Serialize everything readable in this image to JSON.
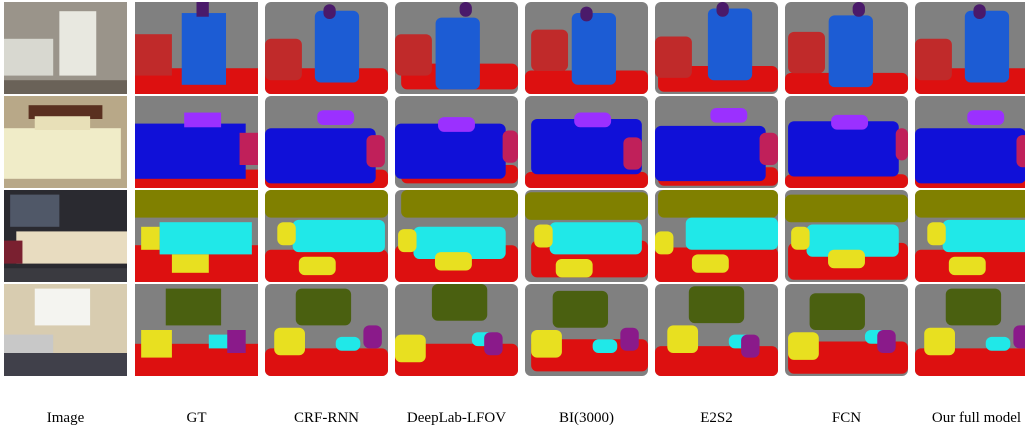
{
  "columns": [
    "Image",
    "GT",
    "CRF-RNN",
    "DeepLab-LFOV",
    "BI(3000)",
    "E2S2",
    "FCN",
    "Our full model"
  ]
}
